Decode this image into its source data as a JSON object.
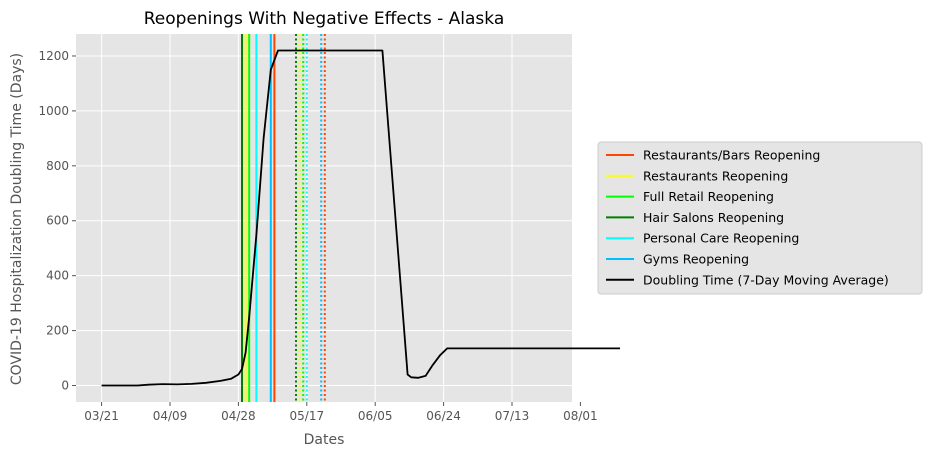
{
  "chart_data": {
    "type": "line",
    "title": "Reopenings With Negative Effects - Alaska",
    "xlabel": "Dates",
    "ylabel": "COVID-19 Hospitalization Doubling Time (Days)",
    "x_tick_labels": [
      "03/21",
      "04/09",
      "04/28",
      "05/17",
      "06/05",
      "06/24",
      "07/13",
      "08/01"
    ],
    "y_ticks": [
      0,
      200,
      400,
      600,
      800,
      1000,
      1200
    ],
    "ylim": [
      -60,
      1280
    ],
    "grid": true,
    "legend_position": "right",
    "colors": {
      "background": "#e5e5e5",
      "grid": "#ffffff",
      "restaurants_bars": "#ff4500",
      "restaurants": "#ffff00",
      "full_retail": "#00ff00",
      "hair_salons": "#008000",
      "personal_care": "#00ffff",
      "gyms": "#00bfff",
      "doubling_time": "#000000"
    },
    "reopenings": [
      {
        "name": "Restaurants/Bars Reopening",
        "color": "#ff4500",
        "dates": [
          "05/08",
          "05/22"
        ]
      },
      {
        "name": "Restaurants Reopening",
        "color": "#ffff00",
        "dates": [
          "04/30",
          "05/15"
        ]
      },
      {
        "name": "Full Retail Reopening",
        "color": "#00ff00",
        "dates": [
          "05/01",
          "05/16"
        ]
      },
      {
        "name": "Hair Salons Reopening",
        "color": "#008000",
        "dates": [
          "04/29",
          "05/14"
        ]
      },
      {
        "name": "Personal Care Reopening",
        "color": "#00ffff",
        "dates": [
          "05/03",
          "05/17"
        ]
      },
      {
        "name": "Gyms Reopening",
        "color": "#00bfff",
        "dates": [
          "05/07",
          "05/21"
        ]
      }
    ],
    "series": [
      {
        "name": "Doubling Time (7-Day Moving Average)",
        "color": "#000000",
        "points": [
          [
            "03/21",
            0
          ],
          [
            "03/26",
            0
          ],
          [
            "03/31",
            0
          ],
          [
            "04/03",
            3
          ],
          [
            "04/07",
            5
          ],
          [
            "04/11",
            4
          ],
          [
            "04/15",
            6
          ],
          [
            "04/19",
            10
          ],
          [
            "04/23",
            17
          ],
          [
            "04/26",
            25
          ],
          [
            "04/28",
            40
          ],
          [
            "04/29",
            60
          ],
          [
            "04/30",
            120
          ],
          [
            "05/01",
            250
          ],
          [
            "05/03",
            550
          ],
          [
            "05/05",
            900
          ],
          [
            "05/07",
            1150
          ],
          [
            "05/09",
            1220
          ],
          [
            "05/15",
            1220
          ],
          [
            "05/20",
            1220
          ],
          [
            "05/25",
            1220
          ],
          [
            "05/30",
            1220
          ],
          [
            "06/03",
            1220
          ],
          [
            "06/07",
            1220
          ],
          [
            "06/14",
            40
          ],
          [
            "06/15",
            30
          ],
          [
            "06/17",
            28
          ],
          [
            "06/19",
            35
          ],
          [
            "06/21",
            75
          ],
          [
            "06/23",
            110
          ],
          [
            "06/25",
            135
          ],
          [
            "07/01",
            135
          ],
          [
            "07/13",
            135
          ],
          [
            "08/01",
            135
          ],
          [
            "08/12",
            135
          ]
        ]
      }
    ]
  }
}
